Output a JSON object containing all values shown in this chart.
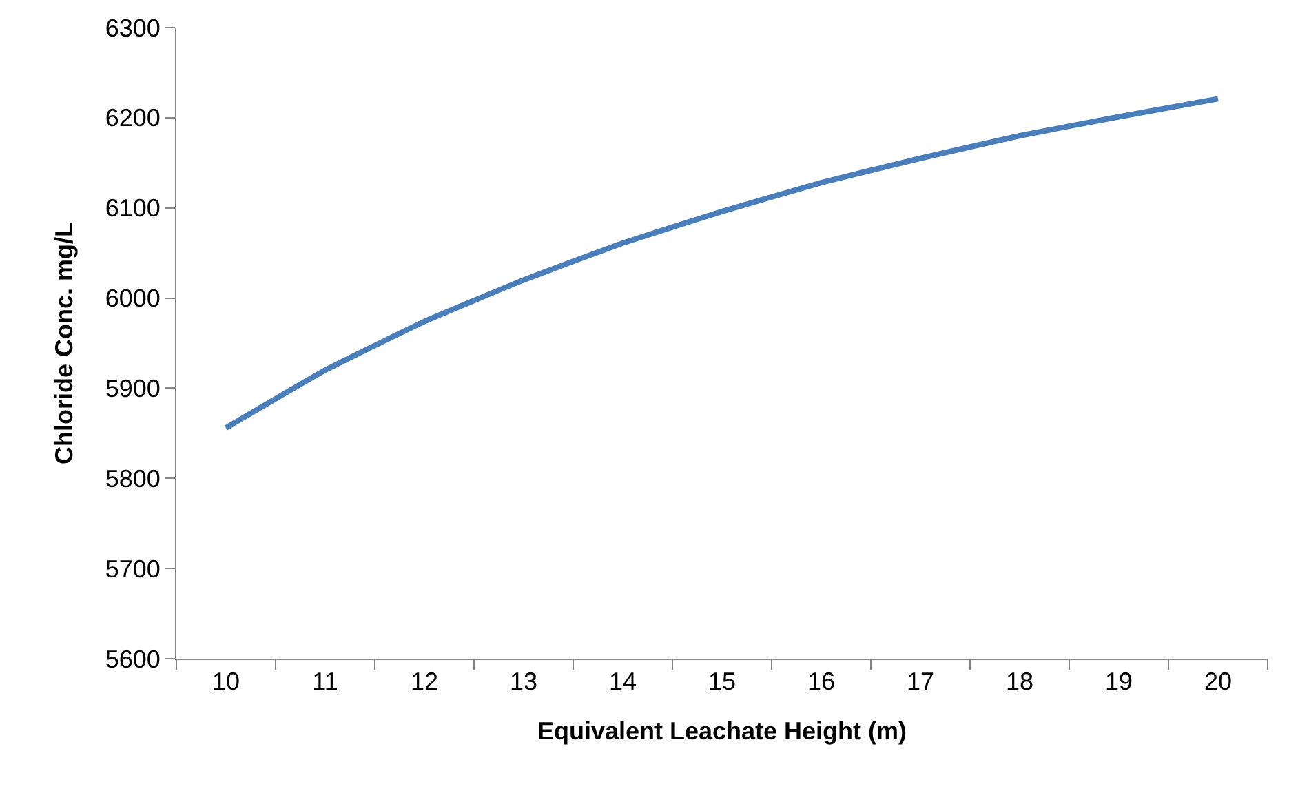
{
  "chart_data": {
    "type": "line",
    "xlabel": "Equivalent Leachate Height (m)",
    "ylabel": "Chloride Conc. mg/L",
    "categories": [
      "10",
      "11",
      "12",
      "13",
      "14",
      "15",
      "16",
      "17",
      "18",
      "19",
      "20"
    ],
    "series": [
      {
        "color": "#4a7ebb",
        "values": [
          5856,
          5920,
          5974,
          6020,
          6061,
          6096,
          6128,
          6155,
          6180,
          6201,
          6221
        ]
      }
    ],
    "ylim": [
      5600,
      6300
    ],
    "yticks": [
      5600,
      5700,
      5800,
      5900,
      6000,
      6100,
      6200,
      6300
    ],
    "grid": false,
    "marker": "none",
    "line_style": "solid"
  }
}
